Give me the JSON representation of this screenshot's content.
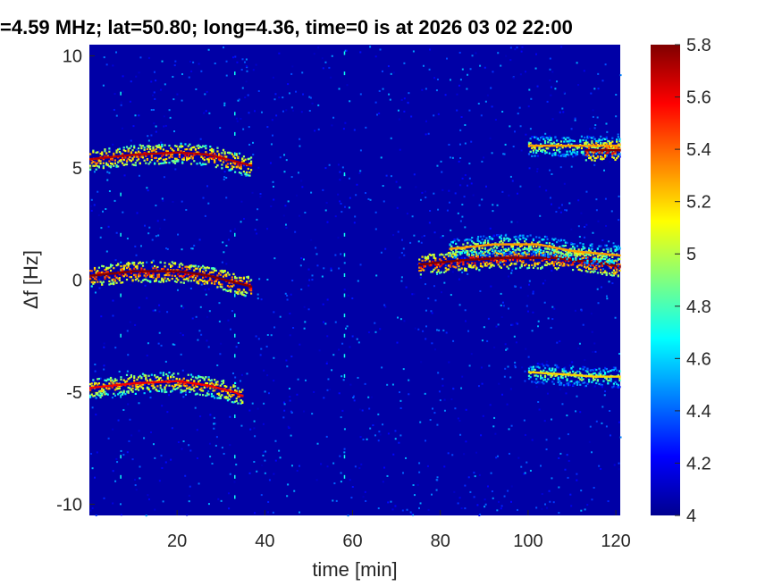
{
  "chart_data": {
    "type": "heatmap",
    "title": "=4.59 MHz;  lat=50.80; long=4.36, time=0 is at 2026 03 02 22:00",
    "xlabel": "time [min]",
    "ylabel": "Δf [Hz]",
    "xlim": [
      0,
      121
    ],
    "ylim": [
      -10.5,
      10.5
    ],
    "xticks": [
      20,
      40,
      60,
      80,
      100,
      120
    ],
    "xtick_labels": [
      "20",
      "40",
      "60",
      "80",
      "100",
      "120"
    ],
    "yticks": [
      10,
      5,
      0,
      -5,
      -10
    ],
    "ytick_labels": [
      "10",
      "5",
      "0",
      "-5",
      "-10"
    ],
    "colorbar": {
      "range": [
        4,
        5.8
      ],
      "ticks": [
        5.8,
        5.6,
        5.4,
        5.2,
        5,
        4.8,
        4.6,
        4.4,
        4.2,
        4
      ],
      "tick_labels": [
        "5.8",
        "5.6",
        "5.4",
        "5.2",
        "5",
        "4.8",
        "4.6",
        "4.4",
        "4.2",
        "4"
      ],
      "colormap": "jet"
    },
    "background_level": 4.0,
    "traces": [
      {
        "x": [
          0,
          10,
          20,
          27,
          33,
          37
        ],
        "y": [
          5.4,
          5.6,
          5.7,
          5.6,
          5.3,
          5.1
        ],
        "level": 5.7
      },
      {
        "x": [
          0,
          10,
          20,
          27,
          33,
          37
        ],
        "y": [
          0.2,
          0.4,
          0.4,
          0.2,
          -0.1,
          -0.3
        ],
        "level": 5.8
      },
      {
        "x": [
          0,
          10,
          20,
          27,
          33,
          35
        ],
        "y": [
          -4.8,
          -4.6,
          -4.5,
          -4.7,
          -5.0,
          -5.2
        ],
        "level": 5.6
      },
      {
        "x": [
          75,
          85,
          95,
          105,
          115,
          121
        ],
        "y": [
          0.7,
          0.9,
          1.0,
          1.0,
          0.8,
          0.6
        ],
        "level": 5.8
      },
      {
        "x": [
          82,
          92,
          102,
          110,
          121
        ],
        "y": [
          1.4,
          1.6,
          1.6,
          1.3,
          1.1
        ],
        "level": 5.3
      },
      {
        "x": [
          100,
          108,
          115,
          121
        ],
        "y": [
          -4.1,
          -4.2,
          -4.3,
          -4.3
        ],
        "level": 5.2
      },
      {
        "x": [
          100,
          110,
          121
        ],
        "y": [
          6.0,
          6.0,
          6.0
        ],
        "level": 5.3
      },
      {
        "x": [
          113,
          121
        ],
        "y": [
          5.8,
          5.8
        ],
        "level": 5.8
      }
    ],
    "vertical_artifacts_x": [
      7,
      33,
      58
    ]
  }
}
